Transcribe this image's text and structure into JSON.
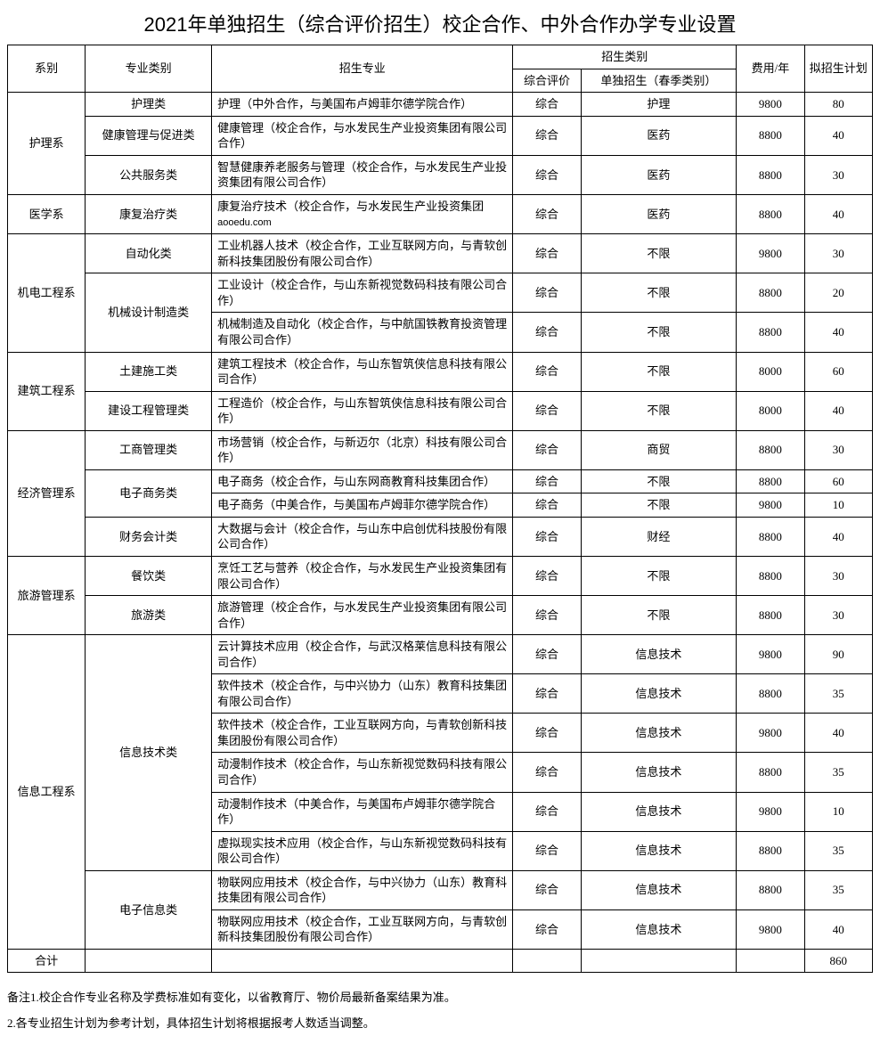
{
  "title": "2021年单独招生（综合评价招生）校企合作、中外合作办学专业设置",
  "headers": {
    "dept": "系别",
    "category": "专业类别",
    "major": "招生专业",
    "enroll_type": "招生类别",
    "comprehensive": "综合评价",
    "single": "单独招生（春季类别）",
    "fee": "费用/年",
    "plan": "拟招生计划"
  },
  "watermark": "aooedu.com",
  "total_label": "合计",
  "total_plan": "860",
  "footnotes": [
    "备注1.校企合作专业名称及学费标准如有变化，以省教育厅、物价局最新备案结果为准。",
    "2.各专业招生计划为参考计划，具体招生计划将根据报考人数适当调整。"
  ],
  "rows": [
    {
      "dept": "护理系",
      "dept_rows": 3,
      "cat": "护理类",
      "cat_rows": 1,
      "major": "护理（中外合作，与美国布卢姆菲尔德学院合作）",
      "eval": "综合",
      "single": "护理",
      "fee": "9800",
      "plan": "80"
    },
    {
      "cat": "健康管理与促进类",
      "cat_rows": 1,
      "major": "健康管理（校企合作，与水发民生产业投资集团有限公司合作）",
      "eval": "综合",
      "single": "医药",
      "fee": "8800",
      "plan": "40"
    },
    {
      "cat": "公共服务类",
      "cat_rows": 1,
      "major": "智慧健康养老服务与管理（校企合作，与水发民生产业投资集团有限公司合作）",
      "eval": "综合",
      "single": "医药",
      "fee": "8800",
      "plan": "30"
    },
    {
      "dept": "医学系",
      "dept_rows": 1,
      "cat": "康复治疗类",
      "cat_rows": 1,
      "major": "康复治疗技术（校企合作，与水发民生产业投资集团",
      "has_watermark": true,
      "eval": "综合",
      "single": "医药",
      "fee": "8800",
      "plan": "40"
    },
    {
      "dept": "机电工程系",
      "dept_rows": 3,
      "cat": "自动化类",
      "cat_rows": 1,
      "major": "工业机器人技术（校企合作，工业互联网方向，与青软创新科技集团股份有限公司合作）",
      "eval": "综合",
      "single": "不限",
      "fee": "9800",
      "plan": "30"
    },
    {
      "cat": "机械设计制造类",
      "cat_rows": 2,
      "major": "工业设计（校企合作，与山东新视觉数码科技有限公司合作）",
      "eval": "综合",
      "single": "不限",
      "fee": "8800",
      "plan": "20"
    },
    {
      "major": "机械制造及自动化（校企合作，与中航国铁教育投资管理有限公司合作）",
      "eval": "综合",
      "single": "不限",
      "fee": "8800",
      "plan": "40"
    },
    {
      "dept": "建筑工程系",
      "dept_rows": 2,
      "cat": "土建施工类",
      "cat_rows": 1,
      "major": "建筑工程技术（校企合作，与山东智筑侠信息科技有限公司合作）",
      "eval": "综合",
      "single": "不限",
      "fee": "8000",
      "plan": "60"
    },
    {
      "cat": "建设工程管理类",
      "cat_rows": 1,
      "major": "工程造价（校企合作，与山东智筑侠信息科技有限公司合作）",
      "eval": "综合",
      "single": "不限",
      "fee": "8000",
      "plan": "40"
    },
    {
      "dept": "经济管理系",
      "dept_rows": 4,
      "cat": "工商管理类",
      "cat_rows": 1,
      "major": "市场营销（校企合作，与新迈尔（北京）科技有限公司合作）",
      "eval": "综合",
      "single": "商贸",
      "fee": "8800",
      "plan": "30"
    },
    {
      "cat": "电子商务类",
      "cat_rows": 2,
      "major": "电子商务（校企合作，与山东网商教育科技集团合作）",
      "eval": "综合",
      "single": "不限",
      "fee": "8800",
      "plan": "60"
    },
    {
      "major": "电子商务（中美合作，与美国布卢姆菲尔德学院合作）",
      "eval": "综合",
      "single": "不限",
      "fee": "9800",
      "plan": "10"
    },
    {
      "cat": "财务会计类",
      "cat_rows": 1,
      "major": "大数据与会计（校企合作，与山东中启创优科技股份有限公司合作）",
      "eval": "综合",
      "single": "财经",
      "fee": "8800",
      "plan": "40"
    },
    {
      "dept": "旅游管理系",
      "dept_rows": 2,
      "cat": "餐饮类",
      "cat_rows": 1,
      "major": "烹饪工艺与营养（校企合作，与水发民生产业投资集团有限公司合作）",
      "eval": "综合",
      "single": "不限",
      "fee": "8800",
      "plan": "30"
    },
    {
      "cat": "旅游类",
      "cat_rows": 1,
      "major": "旅游管理（校企合作，与水发民生产业投资集团有限公司合作）",
      "eval": "综合",
      "single": "不限",
      "fee": "8800",
      "plan": "30"
    },
    {
      "dept": "信息工程系",
      "dept_rows": 8,
      "cat": "信息技术类",
      "cat_rows": 6,
      "major": "云计算技术应用（校企合作，与武汉格莱信息科技有限公司合作）",
      "eval": "综合",
      "single": "信息技术",
      "fee": "9800",
      "plan": "90"
    },
    {
      "major": "软件技术（校企合作，与中兴协力（山东）教育科技集团有限公司合作）",
      "eval": "综合",
      "single": "信息技术",
      "fee": "8800",
      "plan": "35"
    },
    {
      "major": "软件技术（校企合作，工业互联网方向，与青软创新科技集团股份有限公司合作）",
      "eval": "综合",
      "single": "信息技术",
      "fee": "9800",
      "plan": "40"
    },
    {
      "major": "动漫制作技术（校企合作，与山东新视觉数码科技有限公司合作）",
      "eval": "综合",
      "single": "信息技术",
      "fee": "8800",
      "plan": "35"
    },
    {
      "major": "动漫制作技术（中美合作，与美国布卢姆菲尔德学院合作）",
      "eval": "综合",
      "single": "信息技术",
      "fee": "9800",
      "plan": "10"
    },
    {
      "major": "虚拟现实技术应用（校企合作，与山东新视觉数码科技有限公司合作）",
      "eval": "综合",
      "single": "信息技术",
      "fee": "8800",
      "plan": "35"
    },
    {
      "cat": "电子信息类",
      "cat_rows": 2,
      "major": "物联网应用技术（校企合作，与中兴协力（山东）教育科技集团有限公司合作）",
      "eval": "综合",
      "single": "信息技术",
      "fee": "8800",
      "plan": "35"
    },
    {
      "major": "物联网应用技术（校企合作，工业互联网方向，与青软创新科技集团股份有限公司合作）",
      "eval": "综合",
      "single": "信息技术",
      "fee": "9800",
      "plan": "40"
    }
  ]
}
